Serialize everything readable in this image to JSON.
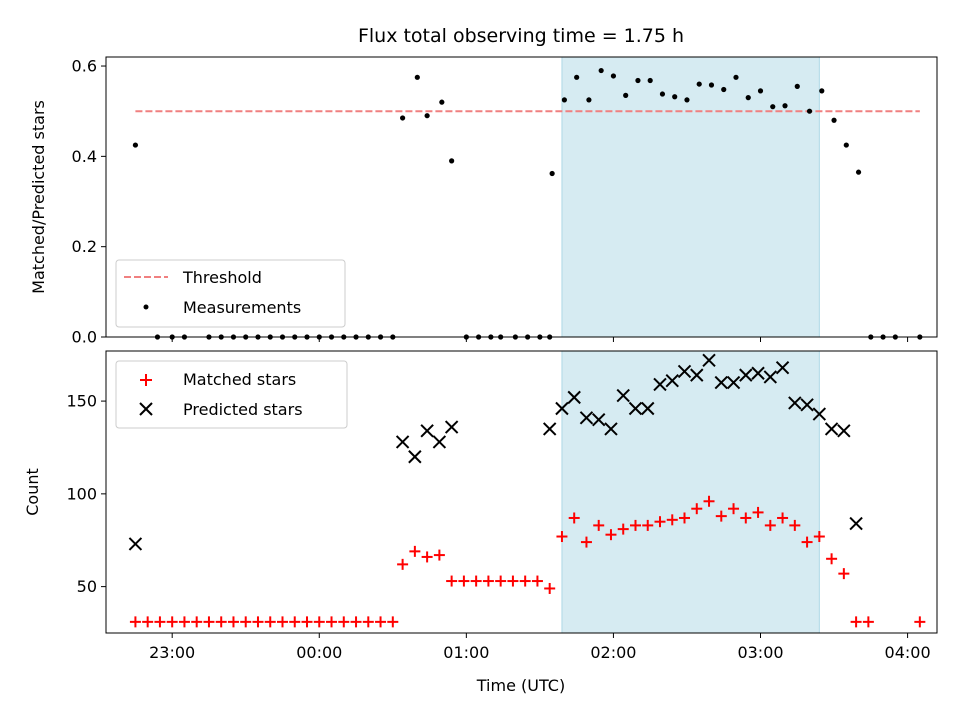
{
  "title": "Flux total observing time = 1.75 h",
  "colors": {
    "threshold": "#f08080",
    "measurement": "#000000",
    "matched": "#ff0000",
    "predicted": "#000000",
    "highlight": "#add8e6"
  },
  "chart_data": [
    {
      "type": "scatter",
      "ylabel": "Matched/Predicted stars",
      "ylim": [
        0,
        0.62
      ],
      "yticks": [
        0.0,
        0.2,
        0.4,
        0.6
      ],
      "ytick_labels": [
        "0.0",
        "0.2",
        "0.4",
        "0.6"
      ],
      "xlim_utc_hours_from_midnight": [
        -1.45,
        4.2
      ],
      "highlight_span_utc": [
        "01:39",
        "03:24"
      ],
      "threshold": {
        "name": "Threshold",
        "value": 0.5,
        "x_range": [
          "22:45",
          "04:05"
        ],
        "style": "dashed"
      },
      "legend": {
        "placement": "lower-left",
        "entries": [
          "Threshold",
          "Measurements"
        ]
      },
      "series": [
        {
          "name": "Measurements",
          "marker": "dot",
          "x": [
            "22:45",
            "22:54",
            "23:00",
            "23:05",
            "23:15",
            "23:20",
            "23:25",
            "23:30",
            "23:35",
            "23:40",
            "23:45",
            "23:50",
            "23:55",
            "00:00",
            "00:05",
            "00:10",
            "00:15",
            "00:20",
            "00:25",
            "00:30",
            "00:34",
            "00:40",
            "00:44",
            "00:50",
            "00:54",
            "01:00",
            "01:05",
            "01:10",
            "01:14",
            "01:20",
            "01:25",
            "01:30",
            "01:34",
            "01:35",
            "01:40",
            "01:45",
            "01:50",
            "01:55",
            "02:00",
            "02:05",
            "02:10",
            "02:15",
            "02:20",
            "02:25",
            "02:30",
            "02:35",
            "02:40",
            "02:45",
            "02:50",
            "02:55",
            "03:00",
            "03:05",
            "03:10",
            "03:15",
            "03:20",
            "03:25",
            "03:30",
            "03:35",
            "03:40",
            "03:45",
            "03:50",
            "03:55",
            "04:05"
          ],
          "y": [
            0.425,
            0.0,
            0.0,
            0.0,
            0.0,
            0.0,
            0.0,
            0.0,
            0.0,
            0.0,
            0.0,
            0.0,
            0.0,
            0.0,
            0.0,
            0.0,
            0.0,
            0.0,
            0.0,
            0.0,
            0.485,
            0.575,
            0.49,
            0.52,
            0.39,
            0.0,
            0.0,
            0.0,
            0.0,
            0.0,
            0.0,
            0.0,
            0.0,
            0.362,
            0.525,
            0.575,
            0.525,
            0.59,
            0.578,
            0.535,
            0.568,
            0.568,
            0.538,
            0.532,
            0.525,
            0.56,
            0.558,
            0.548,
            0.575,
            0.53,
            0.545,
            0.51,
            0.512,
            0.555,
            0.5,
            0.545,
            0.48,
            0.425,
            0.365,
            0.0,
            0.0,
            0.0,
            0.0
          ]
        }
      ]
    },
    {
      "type": "scatter",
      "xlabel": "Time (UTC)",
      "ylabel": "Count",
      "ylim": [
        25,
        177
      ],
      "yticks": [
        50,
        100,
        150
      ],
      "ytick_labels": [
        "50",
        "100",
        "150"
      ],
      "xticks": [
        "23:00",
        "00:00",
        "01:00",
        "02:00",
        "03:00",
        "04:00"
      ],
      "xlim_utc_hours_from_midnight": [
        -1.45,
        4.2
      ],
      "highlight_span_utc": [
        "01:39",
        "03:24"
      ],
      "legend": {
        "placement": "upper-left",
        "entries": [
          "Matched stars",
          "Predicted stars"
        ]
      },
      "series": [
        {
          "name": "Matched stars",
          "marker": "plus",
          "x": [
            "22:45",
            "22:50",
            "22:55",
            "23:00",
            "23:05",
            "23:10",
            "23:15",
            "23:20",
            "23:25",
            "23:30",
            "23:35",
            "23:40",
            "23:45",
            "23:50",
            "23:55",
            "00:00",
            "00:05",
            "00:10",
            "00:15",
            "00:20",
            "00:25",
            "00:30",
            "00:34",
            "00:39",
            "00:44",
            "00:49",
            "00:54",
            "00:59",
            "01:04",
            "01:09",
            "01:14",
            "01:19",
            "01:24",
            "01:29",
            "01:34",
            "01:39",
            "01:44",
            "01:49",
            "01:54",
            "01:59",
            "02:04",
            "02:09",
            "02:14",
            "02:19",
            "02:24",
            "02:29",
            "02:34",
            "02:39",
            "02:44",
            "02:49",
            "02:54",
            "02:59",
            "03:04",
            "03:09",
            "03:14",
            "03:19",
            "03:24",
            "03:29",
            "03:34",
            "03:39",
            "03:44",
            "04:05"
          ],
          "y": [
            31,
            31,
            31,
            31,
            31,
            31,
            31,
            31,
            31,
            31,
            31,
            31,
            31,
            31,
            31,
            31,
            31,
            31,
            31,
            31,
            31,
            31,
            62,
            69,
            66,
            67,
            53,
            53,
            53,
            53,
            53,
            53,
            53,
            53,
            49,
            77,
            87,
            74,
            83,
            78,
            81,
            83,
            83,
            85,
            86,
            87,
            92,
            96,
            88,
            92,
            87,
            90,
            83,
            87,
            83,
            74,
            77,
            65,
            57,
            31,
            31,
            31
          ]
        },
        {
          "name": "Predicted stars",
          "marker": "x",
          "x": [
            "22:45",
            "00:34",
            "00:39",
            "00:44",
            "00:49",
            "00:54",
            "01:34",
            "01:39",
            "01:44",
            "01:49",
            "01:54",
            "01:59",
            "02:04",
            "02:09",
            "02:14",
            "02:19",
            "02:24",
            "02:29",
            "02:34",
            "02:39",
            "02:44",
            "02:49",
            "02:54",
            "02:59",
            "03:04",
            "03:09",
            "03:14",
            "03:19",
            "03:24",
            "03:29",
            "03:34",
            "03:39"
          ],
          "y": [
            73,
            128,
            120,
            134,
            128,
            136,
            135,
            146,
            152,
            141,
            140,
            135,
            153,
            146,
            146,
            159,
            161,
            166,
            164,
            172,
            160,
            160,
            164,
            165,
            163,
            168,
            149,
            148,
            143,
            135,
            134,
            84
          ]
        }
      ]
    }
  ]
}
